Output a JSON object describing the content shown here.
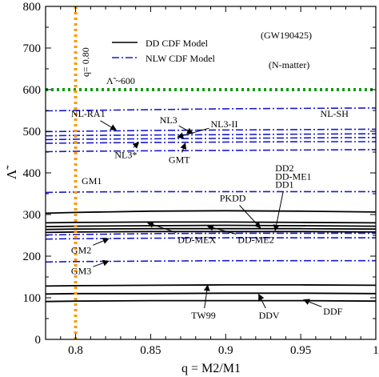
{
  "chart_data": {
    "type": "line",
    "xlim": [
      0.78,
      1.0
    ],
    "ylim": [
      0,
      800
    ],
    "xticks": [
      0.8,
      0.85,
      0.9,
      0.95,
      1
    ],
    "xtick_labels": [
      "0.8",
      "0.85",
      "0.9",
      "0.95",
      "1"
    ],
    "yticks": [
      0,
      100,
      200,
      300,
      400,
      500,
      600,
      700,
      800
    ],
    "ytick_labels": [
      "0",
      "100",
      "200",
      "300",
      "400",
      "500",
      "600",
      "700",
      "800"
    ],
    "xlabel": "q = M2/M1",
    "ylabel": "Λ̃",
    "legend": {
      "placement": "top-left",
      "entries": [
        {
          "label": "DD CDF Model",
          "style": "solid",
          "color": "#000000"
        },
        {
          "label": "NLW CDF Model",
          "style": "dashdot",
          "color": "#1a1acc"
        }
      ]
    },
    "annotations": {
      "event": "(GW190425)",
      "matter": "(N-matter)",
      "limit": "Λ̃ ~600",
      "q_line": "q= 0.80"
    },
    "reference_lines": [
      {
        "orientation": "horizontal",
        "value": 600,
        "color": "#119911",
        "style": "dotted"
      },
      {
        "orientation": "vertical",
        "value": 0.8,
        "color": "#ff9900",
        "style": "dotted"
      }
    ],
    "x": [
      0.78,
      0.8,
      0.85,
      0.9,
      0.95,
      1.0
    ],
    "series": [
      {
        "model": "NL-SH",
        "family": "NLW",
        "values": [
          549,
          550,
          552,
          554,
          555,
          556
        ]
      },
      {
        "model": "NL3",
        "family": "NLW",
        "values": [
          499,
          500,
          502,
          503,
          504,
          505
        ]
      },
      {
        "model": "NL3-II",
        "family": "NLW",
        "values": [
          489,
          490,
          491,
          492,
          493,
          494
        ]
      },
      {
        "model": "NL-RA1",
        "family": "NLW",
        "values": [
          480,
          481,
          482,
          483,
          484,
          485
        ]
      },
      {
        "model": "NL3*",
        "family": "NLW",
        "values": [
          471,
          472,
          473,
          474,
          475,
          475
        ]
      },
      {
        "model": "GMT",
        "family": "NLW",
        "values": [
          451,
          452,
          453,
          454,
          455,
          456
        ]
      },
      {
        "model": "GM1",
        "family": "NLW",
        "values": [
          353,
          354,
          355,
          355,
          355,
          355
        ]
      },
      {
        "model": "PKDD",
        "family": "DD",
        "values": [
          303,
          305,
          308,
          309,
          308,
          306
        ]
      },
      {
        "model": "DD-MEX",
        "family": "DD",
        "values": [
          280,
          281,
          282,
          282,
          281,
          280
        ]
      },
      {
        "model": "DD2",
        "family": "DD",
        "values": [
          271,
          272,
          273,
          274,
          273,
          272
        ]
      },
      {
        "model": "DD-ME1",
        "family": "DD",
        "values": [
          264,
          265,
          266,
          266,
          266,
          265
        ]
      },
      {
        "model": "DD1",
        "family": "DD",
        "values": [
          257,
          258,
          259,
          259,
          259,
          258
        ]
      },
      {
        "model": "GM2",
        "family": "NLW",
        "values": [
          251,
          252,
          254,
          255,
          255,
          255
        ]
      },
      {
        "model": "DD-ME2",
        "family": "NLW",
        "values": [
          241,
          242,
          243,
          244,
          244,
          244
        ]
      },
      {
        "model": "GM3",
        "family": "NLW",
        "values": [
          186,
          187,
          188,
          189,
          189,
          189
        ]
      },
      {
        "model": "TW99",
        "family": "DD",
        "values": [
          128,
          129,
          130,
          131,
          131,
          130
        ]
      },
      {
        "model": "DDV",
        "family": "DD",
        "values": [
          109,
          110,
          110,
          111,
          111,
          110
        ]
      },
      {
        "model": "DDF",
        "family": "DD",
        "values": [
          91,
          92,
          93,
          93,
          93,
          92
        ]
      }
    ],
    "curve_labels": [
      {
        "text": "NL-RA1",
        "x": 0.797,
        "y": 535,
        "ax": 0.827,
        "ay": 503
      },
      {
        "text": "NL-SH",
        "x": 0.963,
        "y": 535
      },
      {
        "text": "NL3",
        "x": 0.856,
        "y": 519,
        "ax": 0.878,
        "ay": 495
      },
      {
        "text": "NL3-II",
        "x": 0.89,
        "y": 510,
        "ax": 0.868,
        "ay": 486
      },
      {
        "text": "NL3*",
        "x": 0.826,
        "y": 436,
        "ax": 0.842,
        "ay": 473
      },
      {
        "text": "GMT",
        "x": 0.862,
        "y": 424,
        "ax": 0.873,
        "ay": 471
      },
      {
        "text": "GM1",
        "x": 0.804,
        "y": 373
      },
      {
        "text": "DD2",
        "x": 0.933,
        "y": 404
      },
      {
        "text": "DD-ME1",
        "x": 0.933,
        "y": 384
      },
      {
        "text": "DD1",
        "x": 0.933,
        "y": 364,
        "ax": 0.933,
        "ay": 262
      },
      {
        "text": "PKDD",
        "x": 0.896,
        "y": 332,
        "ax": 0.923,
        "ay": 268
      },
      {
        "text": "GM2",
        "x": 0.797,
        "y": 207,
        "ax": 0.822,
        "ay": 242
      },
      {
        "text": "DD-MEX",
        "x": 0.868,
        "y": 232,
        "ax": 0.848,
        "ay": 280
      },
      {
        "text": "DD-ME2",
        "x": 0.908,
        "y": 232,
        "ax": 0.888,
        "ay": 272
      },
      {
        "text": "GM3",
        "x": 0.797,
        "y": 157,
        "ax": 0.822,
        "ay": 188
      },
      {
        "text": "TW99",
        "x": 0.877,
        "y": 50,
        "ax": 0.888,
        "ay": 130
      },
      {
        "text": "DDV",
        "x": 0.922,
        "y": 50,
        "ax": 0.922,
        "ay": 108
      },
      {
        "text": "DDF",
        "x": 0.965,
        "y": 60,
        "ax": 0.952,
        "ay": 95
      }
    ]
  }
}
